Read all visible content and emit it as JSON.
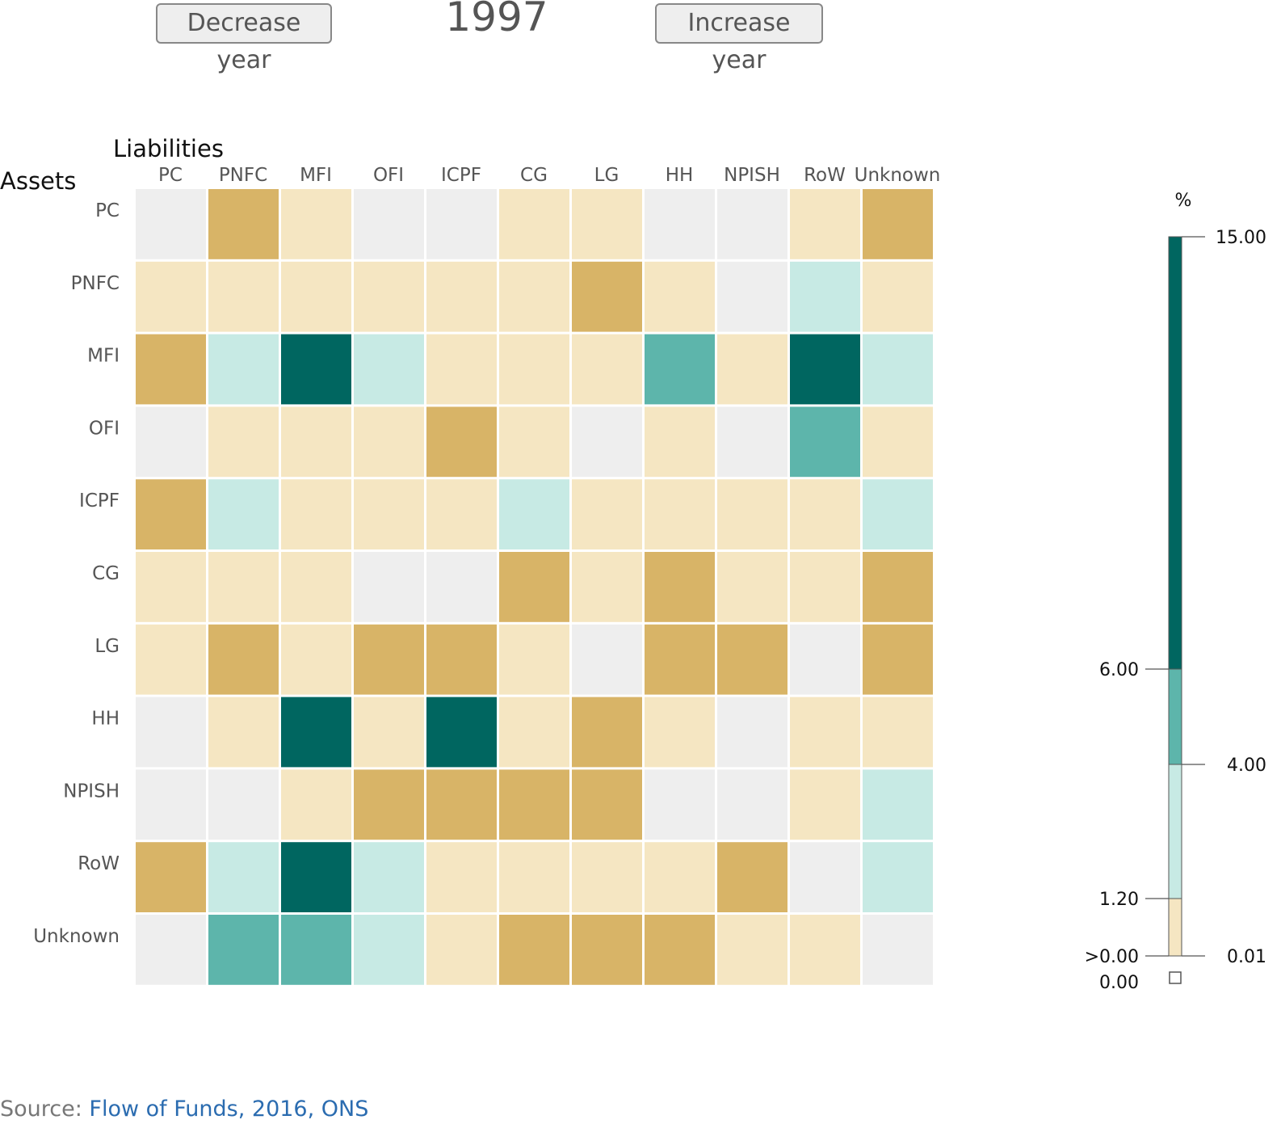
{
  "controls": {
    "decrease_label": "Decrease year",
    "increase_label": "Increase year",
    "year": "1997"
  },
  "chart_data": {
    "type": "heatmap",
    "x_title": "Liabilities",
    "y_title": "Assets",
    "x_categories": [
      "PC",
      "PNFC",
      "MFI",
      "OFI",
      "ICPF",
      "CG",
      "LG",
      "HH",
      "NPISH",
      "RoW",
      "Unknown"
    ],
    "y_categories": [
      "PC",
      "PNFC",
      "MFI",
      "OFI",
      "ICPF",
      "CG",
      "LG",
      "HH",
      "NPISH",
      "RoW",
      "Unknown"
    ],
    "value_bands": [
      "0.00",
      ">0.00 to 0.01",
      "0.01 to 1.20",
      "1.20 to 4.00",
      "4.00 to 6.00",
      "6.00 to 15.00"
    ],
    "band_colors": [
      "#eeeeee",
      "#d8b467",
      "#f5e6c2",
      "#c7eae4",
      "#5db5ab",
      "#006660"
    ],
    "matrix_bands": [
      [
        0,
        1,
        2,
        0,
        0,
        2,
        2,
        0,
        0,
        2,
        1
      ],
      [
        2,
        2,
        2,
        2,
        2,
        2,
        1,
        2,
        0,
        3,
        2
      ],
      [
        1,
        3,
        5,
        3,
        2,
        2,
        2,
        4,
        2,
        5,
        3
      ],
      [
        0,
        2,
        2,
        2,
        1,
        2,
        0,
        2,
        0,
        4,
        2
      ],
      [
        1,
        3,
        2,
        2,
        2,
        3,
        2,
        2,
        2,
        2,
        3
      ],
      [
        2,
        2,
        2,
        0,
        0,
        1,
        2,
        1,
        2,
        2,
        1
      ],
      [
        2,
        1,
        2,
        1,
        1,
        2,
        0,
        1,
        1,
        0,
        1
      ],
      [
        0,
        2,
        5,
        2,
        5,
        2,
        1,
        2,
        0,
        2,
        2
      ],
      [
        0,
        0,
        2,
        1,
        1,
        1,
        1,
        0,
        0,
        2,
        3
      ],
      [
        1,
        3,
        5,
        3,
        2,
        2,
        2,
        2,
        1,
        0,
        3
      ],
      [
        0,
        4,
        4,
        3,
        2,
        1,
        1,
        1,
        2,
        2,
        0
      ]
    ],
    "legend": {
      "unit": "%",
      "tick_labels_left": [
        "6.00",
        "1.20",
        ">0.00",
        "0.00"
      ],
      "tick_labels_right": [
        "15.00",
        "4.00",
        "0.01"
      ]
    }
  },
  "source": {
    "prefix": "Source: ",
    "link_text": "Flow of Funds, 2016, ONS"
  }
}
